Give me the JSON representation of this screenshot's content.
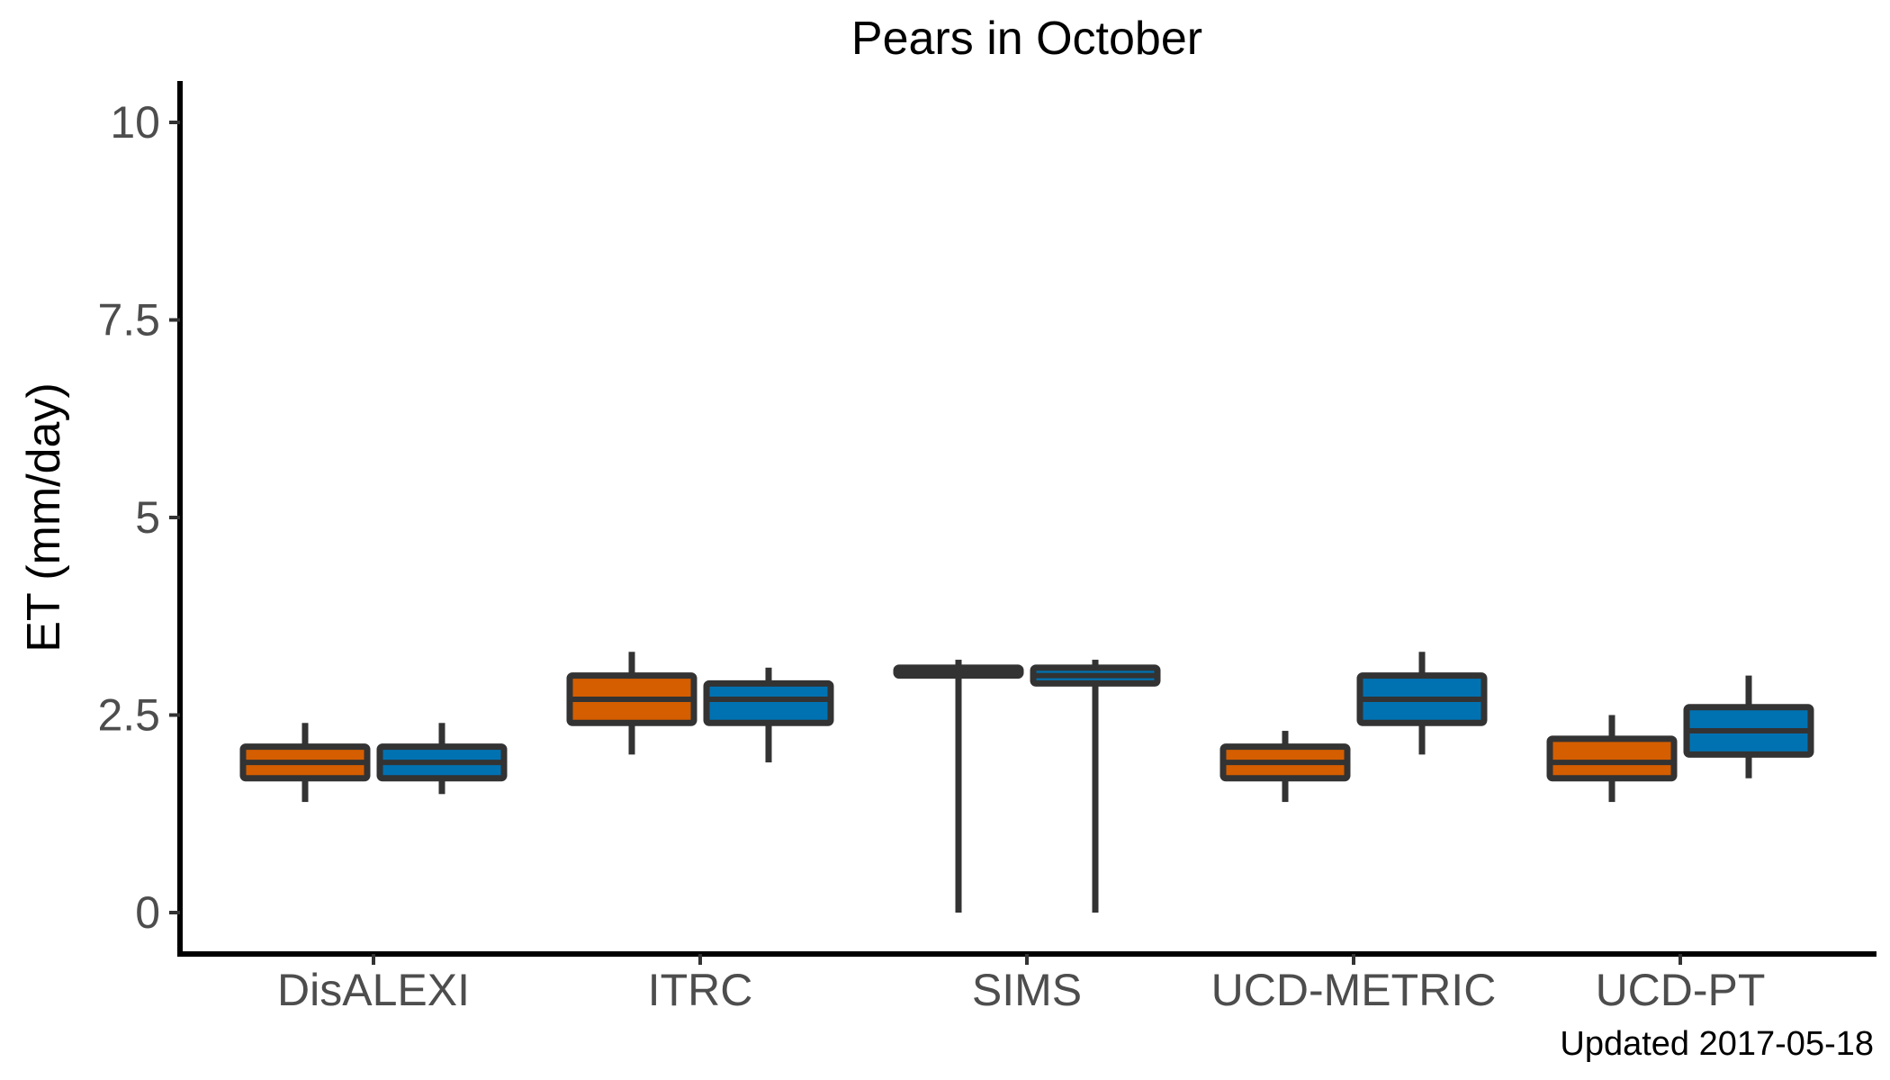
{
  "chart_data": {
    "type": "box",
    "title": "Pears in October",
    "ylabel": "ET (mm/day)",
    "xlabel": "",
    "ylim": [
      -0.5,
      10.5
    ],
    "yticks": [
      0,
      2.5,
      5,
      7.5,
      10
    ],
    "ytick_labels": [
      "0",
      "2.5",
      "5",
      "7.5",
      "10"
    ],
    "grid": false,
    "legend": "none",
    "categories": [
      "DisALEXI",
      "ITRC",
      "SIMS",
      "UCD-METRIC",
      "UCD-PT"
    ],
    "series": [
      {
        "color": "#D55E00",
        "boxes": [
          {
            "min": 1.4,
            "q1": 1.7,
            "median": 1.9,
            "q3": 2.1,
            "max": 2.4
          },
          {
            "min": 2.0,
            "q1": 2.4,
            "median": 2.7,
            "q3": 3.0,
            "max": 3.3
          },
          {
            "min": 0.0,
            "q1": 3.0,
            "median": 3.07,
            "q3": 3.1,
            "max": 3.2
          },
          {
            "min": 1.4,
            "q1": 1.7,
            "median": 1.9,
            "q3": 2.1,
            "max": 2.3
          },
          {
            "min": 1.4,
            "q1": 1.7,
            "median": 1.9,
            "q3": 2.2,
            "max": 2.5
          }
        ]
      },
      {
        "color": "#0072B2",
        "boxes": [
          {
            "min": 1.5,
            "q1": 1.7,
            "median": 1.9,
            "q3": 2.1,
            "max": 2.4
          },
          {
            "min": 1.9,
            "q1": 2.4,
            "median": 2.7,
            "q3": 2.9,
            "max": 3.1
          },
          {
            "min": 0.0,
            "q1": 2.9,
            "median": 3.0,
            "q3": 3.1,
            "max": 3.2
          },
          {
            "min": 2.0,
            "q1": 2.4,
            "median": 2.7,
            "q3": 3.0,
            "max": 3.3
          },
          {
            "min": 1.7,
            "q1": 2.0,
            "median": 2.3,
            "q3": 2.6,
            "max": 3.0
          }
        ]
      }
    ]
  },
  "footnote": "Updated  2017-05-18"
}
